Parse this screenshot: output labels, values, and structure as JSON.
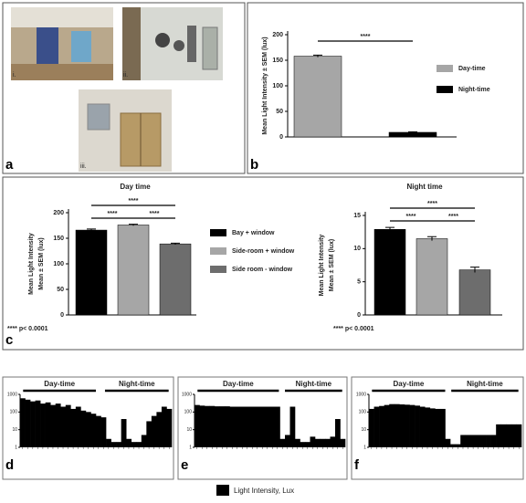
{
  "photos": {
    "panel_label": "a",
    "captions": [
      "i.",
      "ii.",
      "iii."
    ]
  },
  "chart_data": [
    {
      "type": "bar",
      "panel_label": "b",
      "ylabel": [
        "Mean Light Intensity ± SEM (lux)"
      ],
      "series": [
        {
          "name": "Day-time",
          "color": "#a6a6a6",
          "values": [
            158
          ],
          "errors": [
            2
          ]
        },
        {
          "name": "Night-time",
          "color": "#000000",
          "values": [
            9
          ],
          "errors": [
            1
          ]
        }
      ],
      "ylim": [
        0,
        200
      ],
      "yticks": [
        0,
        50,
        100,
        150,
        200
      ],
      "annotations": [
        "****"
      ]
    },
    {
      "type": "bar",
      "panel_label": "c",
      "title": "Day time",
      "ylabel": [
        "Mean Light Intensity",
        "Mean ± SEM (lux)"
      ],
      "series": [
        {
          "name": "Bay + window",
          "color": "#000000",
          "values": [
            166
          ],
          "errors": [
            2
          ]
        },
        {
          "name": "Side-room + window",
          "color": "#a6a6a6",
          "values": [
            176
          ],
          "errors": [
            1.5
          ]
        },
        {
          "name": "Side room - window",
          "color": "#6d6d6d",
          "values": [
            139
          ],
          "errors": [
            1.5
          ]
        }
      ],
      "ylim": [
        0,
        200
      ],
      "yticks": [
        0,
        50,
        100,
        150,
        200
      ],
      "annotations": [
        "****",
        "****",
        "****"
      ],
      "footnote": "**** p< 0.0001"
    },
    {
      "type": "bar",
      "title": "Night time",
      "ylabel": [
        "Mean Light Intensity",
        "Mean ± SEM (lux)"
      ],
      "series": [
        {
          "name": "Bay + window",
          "color": "#000000",
          "values": [
            12.9
          ],
          "errors": [
            0.3
          ]
        },
        {
          "name": "Side-room + window",
          "color": "#a6a6a6",
          "values": [
            11.5
          ],
          "errors": [
            0.3
          ]
        },
        {
          "name": "Side room - window",
          "color": "#6d6d6d",
          "values": [
            6.8
          ],
          "errors": [
            0.4
          ]
        }
      ],
      "ylim": [
        0,
        15
      ],
      "yticks": [
        0,
        5,
        10,
        15
      ],
      "annotations": [
        "****",
        "****",
        "****"
      ],
      "footnote": "**** p< 0.0001"
    },
    {
      "type": "area",
      "panel_label": "d",
      "log_scale": true,
      "color": "#000000",
      "annotations": [
        "Day-time",
        "Night-time"
      ],
      "values": [
        600,
        500,
        400,
        450,
        300,
        350,
        250,
        300,
        200,
        250,
        150,
        200,
        120,
        100,
        80,
        60,
        50,
        3,
        2,
        2,
        40,
        3,
        2,
        2,
        5,
        30,
        60,
        100,
        200,
        150
      ],
      "ylim": [
        1,
        1000
      ],
      "yticks": [
        1,
        10,
        100,
        1000
      ]
    },
    {
      "type": "area",
      "panel_label": "e",
      "log_scale": true,
      "color": "#000000",
      "annotations": [
        "Day-time",
        "Night-time"
      ],
      "values": [
        250,
        230,
        220,
        220,
        210,
        210,
        210,
        200,
        200,
        200,
        200,
        200,
        200,
        200,
        200,
        200,
        200,
        3,
        5,
        200,
        3,
        2,
        2,
        4,
        3,
        3,
        3,
        4,
        40,
        3
      ],
      "ylim": [
        1,
        1000
      ],
      "yticks": [
        1,
        10,
        100,
        1000
      ]
    },
    {
      "type": "area",
      "panel_label": "f",
      "log_scale": true,
      "color": "#000000",
      "annotations": [
        "Day-time",
        "Night-time"
      ],
      "values": [
        150,
        200,
        220,
        250,
        280,
        280,
        270,
        260,
        250,
        230,
        200,
        180,
        160,
        150,
        150,
        3,
        1.5,
        1.5,
        5,
        5,
        5,
        5,
        5,
        5,
        5,
        20,
        20,
        20,
        20,
        20
      ],
      "ylim": [
        1,
        1000
      ],
      "yticks": [
        1,
        10,
        100,
        1000
      ]
    }
  ],
  "shared_legend": {
    "name": "Light Intensity, Lux",
    "color": "#000000"
  }
}
